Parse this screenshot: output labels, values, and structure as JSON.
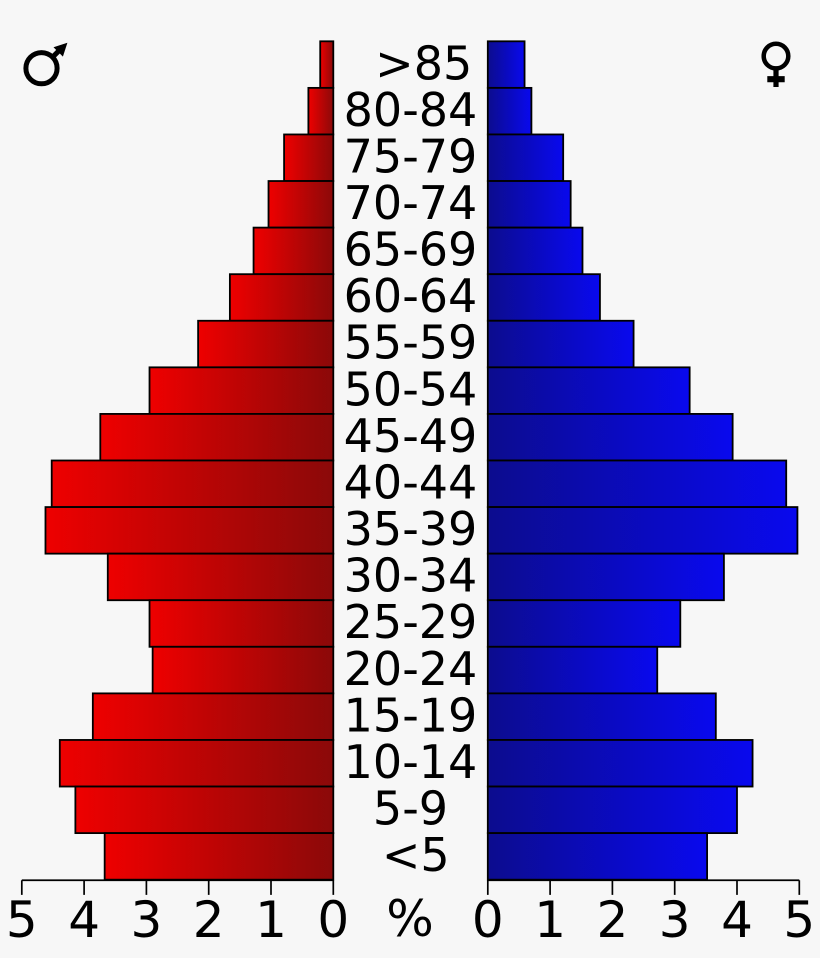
{
  "chart_data": {
    "type": "bar",
    "variant": "population-pyramid",
    "title": "",
    "xlabel": "%",
    "categories": [
      ">85",
      "80-84",
      "75-79",
      "70-74",
      "65-69",
      "60-64",
      "55-59",
      "50-54",
      "45-49",
      "40-44",
      "35-39",
      "30-34",
      "25-29",
      "20-24",
      "15-19",
      "10-14",
      "5-9",
      "<5"
    ],
    "series": [
      {
        "name": "male",
        "symbol": "♂",
        "side": "left",
        "values": [
          0.21,
          0.4,
          0.79,
          1.04,
          1.28,
          1.66,
          2.17,
          2.95,
          3.74,
          4.52,
          4.62,
          3.62,
          2.95,
          2.9,
          3.86,
          4.39,
          4.14,
          3.67
        ]
      },
      {
        "name": "female",
        "symbol": "♀",
        "side": "right",
        "values": [
          0.59,
          0.7,
          1.21,
          1.33,
          1.52,
          1.8,
          2.34,
          3.24,
          3.93,
          4.79,
          4.97,
          3.79,
          3.09,
          2.72,
          3.66,
          4.25,
          4.0,
          3.52
        ]
      }
    ],
    "x_ticks_left": [
      "5",
      "4",
      "3",
      "2",
      "1",
      "0"
    ],
    "x_ticks_right": [
      "0",
      "1",
      "2",
      "3",
      "4",
      "5"
    ],
    "xlim": [
      0,
      5
    ],
    "grid": false,
    "legend_position": "top-corners",
    "colors": {
      "male_gradient_outer": "#ee0000",
      "male_gradient_inner": "#8b0909",
      "female_gradient_inner": "#0c0c8e",
      "female_gradient_outer": "#0909ee",
      "bar_outline": "#000000",
      "axis": "#000000",
      "text": "#000000",
      "background": "#f7f7f7"
    }
  }
}
